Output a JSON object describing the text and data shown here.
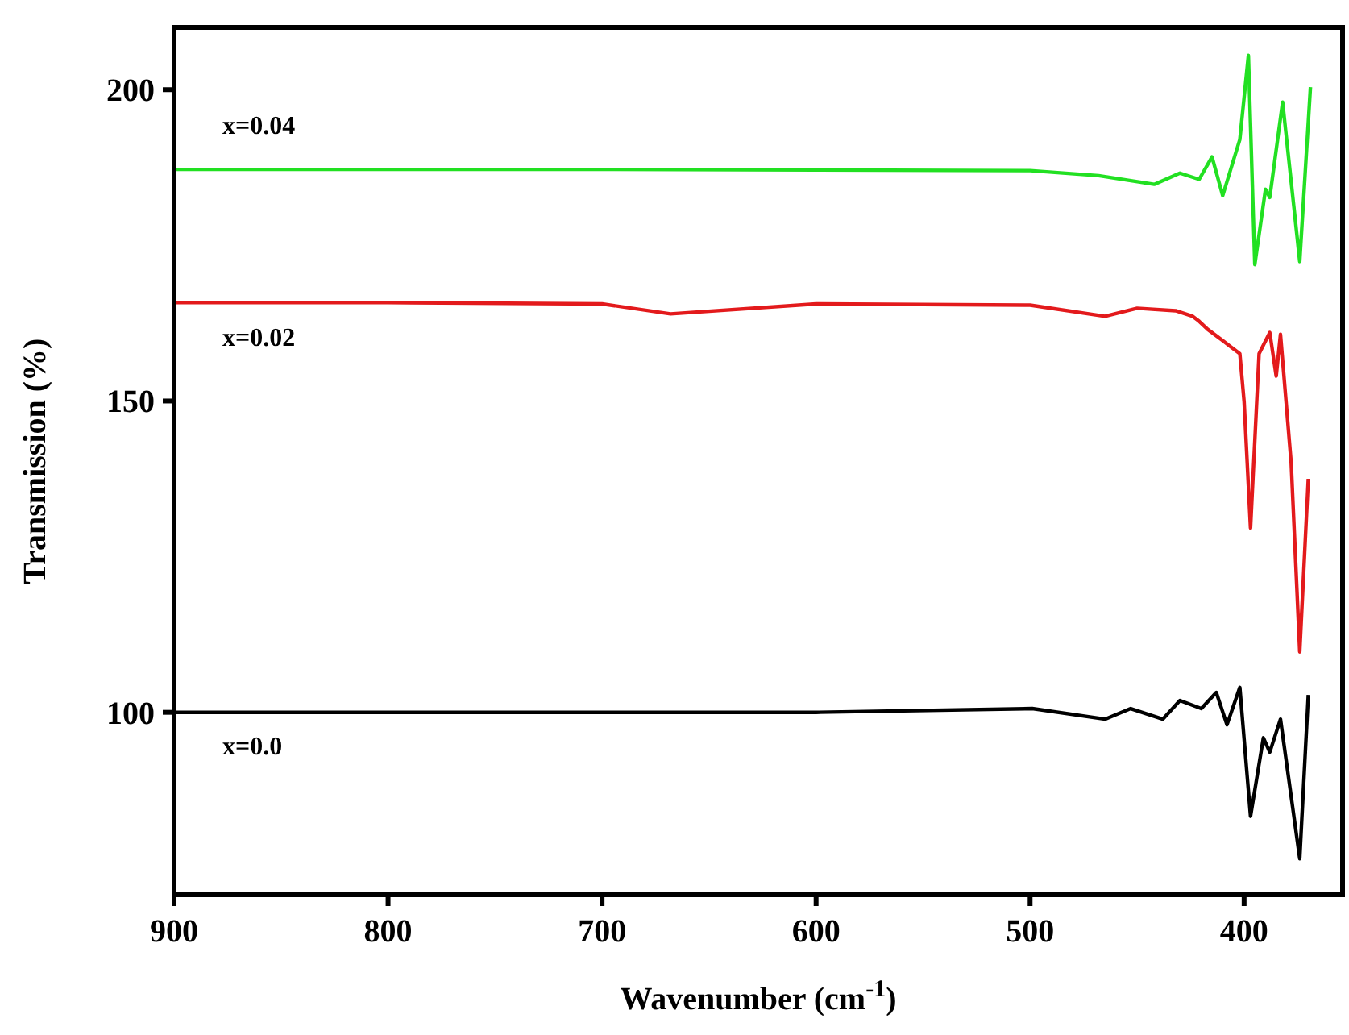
{
  "chart_data": {
    "type": "line",
    "xlabel": "Wavenumber (cm$^{-1}$)",
    "ylabel": "Transmission (%)",
    "xlim": [
      900,
      354
    ],
    "ylim": [
      70.7,
      210
    ],
    "xticks": [
      900,
      800,
      700,
      600,
      500,
      400
    ],
    "yticks": [
      100,
      150,
      200
    ],
    "grid": false,
    "marker": "none",
    "line_style": "solid",
    "series": [
      {
        "name": "x=0.0",
        "color": "#000000",
        "x": [
          900,
          800,
          700,
          600,
          499,
          465,
          453,
          438,
          430,
          420,
          413,
          408,
          402,
          397,
          391,
          388,
          383,
          374,
          370
        ],
        "values": [
          100,
          100,
          100,
          100,
          100.6,
          98.9,
          100.6,
          98.9,
          101.9,
          100.6,
          103.2,
          98,
          104,
          83.3,
          95.9,
          93.6,
          98.9,
          76.5,
          102.8
        ]
      },
      {
        "name": "x=0.02",
        "color": "#e31a1c",
        "x": [
          900,
          800,
          700,
          668,
          600,
          500,
          465,
          450,
          432,
          424,
          421,
          417,
          410,
          402,
          400,
          397,
          393,
          388,
          385,
          383,
          378,
          374,
          370
        ],
        "values": [
          165.8,
          165.8,
          165.6,
          164,
          165.6,
          165.4,
          163.6,
          164.9,
          164.5,
          163.6,
          162.8,
          161.5,
          159.7,
          157.6,
          149.9,
          129.6,
          157.6,
          161,
          154,
          160.7,
          140,
          109.7,
          137.5
        ]
      },
      {
        "name": "x=0.04",
        "color": "#22e022",
        "x": [
          900,
          800,
          700,
          600,
          500,
          468,
          442,
          430,
          421,
          415,
          410,
          402,
          398,
          395,
          390,
          388,
          382,
          374,
          369
        ],
        "values": [
          187.2,
          187.2,
          187.2,
          187.1,
          187,
          186.2,
          184.8,
          186.6,
          185.6,
          189.2,
          183,
          192,
          205.5,
          171.9,
          184,
          182.7,
          198,
          172.4,
          200.4
        ]
      }
    ]
  }
}
